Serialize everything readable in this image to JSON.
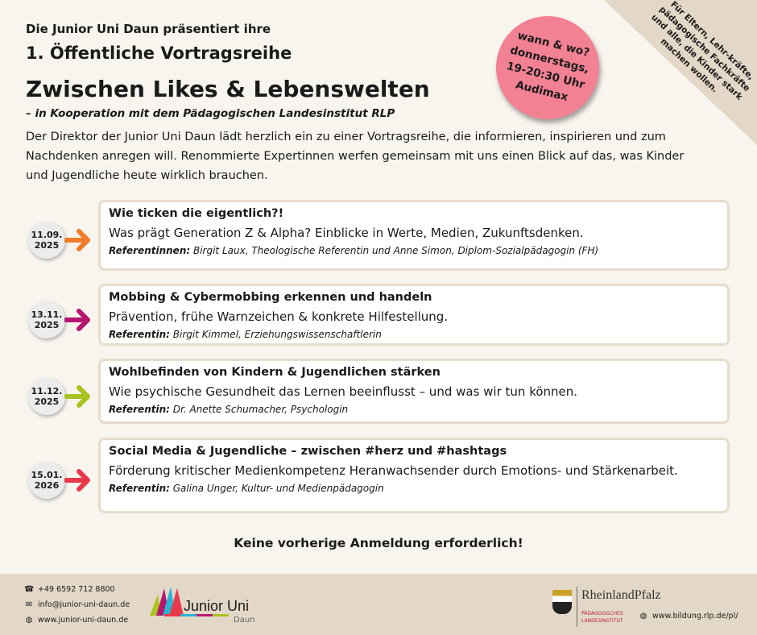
{
  "header": {
    "pre_title": "Die Junior Uni Daun präsentiert ihre",
    "series": "1. Öffentliche Vortragsreihe",
    "title": "Zwischen Likes & Lebenswelten",
    "cooperation": "– in Kooperation mit dem Pädagogischen Landesinstitut RLP",
    "intro": "Der Direktor der Junior Uni Daun lädt herzlich ein zu einer Vortragsreihe, die informieren, inspirieren und zum Nachdenken anregen will. Renommierte Expertinnen werfen gemeinsam mit uns einen Blick auf das, was Kinder und Jugendliche heute wirklich brauchen."
  },
  "badge": {
    "lines": [
      "wann & wo?",
      "donnerstags,",
      "19-20:30 Uhr",
      "Audimax"
    ],
    "color": "#f28193"
  },
  "corner": {
    "text": "Für Eltern, Lehr-kräfte, pädagogische Fachkräfte und alle, die Kinder stark machen wollen."
  },
  "events": [
    {
      "date": "11.09.",
      "year": "2025",
      "title": "Wie ticken die eigentlich?!",
      "description": "Was prägt Generation Z & Alpha? Einblicke in Werte, Medien, Zukunftsdenken.",
      "ref_label": "Referentinnen:",
      "ref": " Birgit Laux, Theologische Referentin und Anne Simon, Diplom-Sozialpädagogin (FH)",
      "color": "#f07b2a"
    },
    {
      "date": "13.11.",
      "year": "2025",
      "title": "Mobbing & Cybermobbing erkennen und handeln",
      "description": "Prävention, frühe Warnzeichen & konkrete Hilfestellung.",
      "ref_label": "Referentin:",
      "ref": " Birgit Kimmel, Erziehungswissenschaftlerin",
      "color": "#b5166f"
    },
    {
      "date": "11.12.",
      "year": "2025",
      "title": "Wohlbefinden von Kindern & Jugendlichen stärken",
      "description": "Wie psychische Gesundheit das Lernen beeinflusst – und was wir tun können.",
      "ref_label": "Referentin:",
      "ref": " Dr. Anette Schumacher, Psychologin",
      "color": "#a9c21f"
    },
    {
      "date": "15.01.",
      "year": "2026",
      "title": "Social Media & Jugendliche – zwischen #herz und #hashtags",
      "description": "Förderung kritischer Medienkompetenz Heranwachsender durch Emotions- und Stärkenarbeit.",
      "ref_label": "Referentin:",
      "ref": " Galina Unger, Kultur- und Medienpädagogin",
      "color": "#e8394a"
    }
  ],
  "note": "Keine vorherige Anmeldung erforderlich!",
  "footer": {
    "phone": "+49 6592 712 8800",
    "email": "info@junior-uni-daun.de",
    "web": "www.junior-uni-daun.de",
    "logo_main": "Junior Uni",
    "logo_sub": "Daun",
    "rlp_name": "RheinlandPfalz",
    "rlp_sub1": "PÄDAGOGISCHES",
    "rlp_sub2": "LANDESINSTITUT",
    "rlp_web": "www.bildung.rlp.de/pl/"
  }
}
